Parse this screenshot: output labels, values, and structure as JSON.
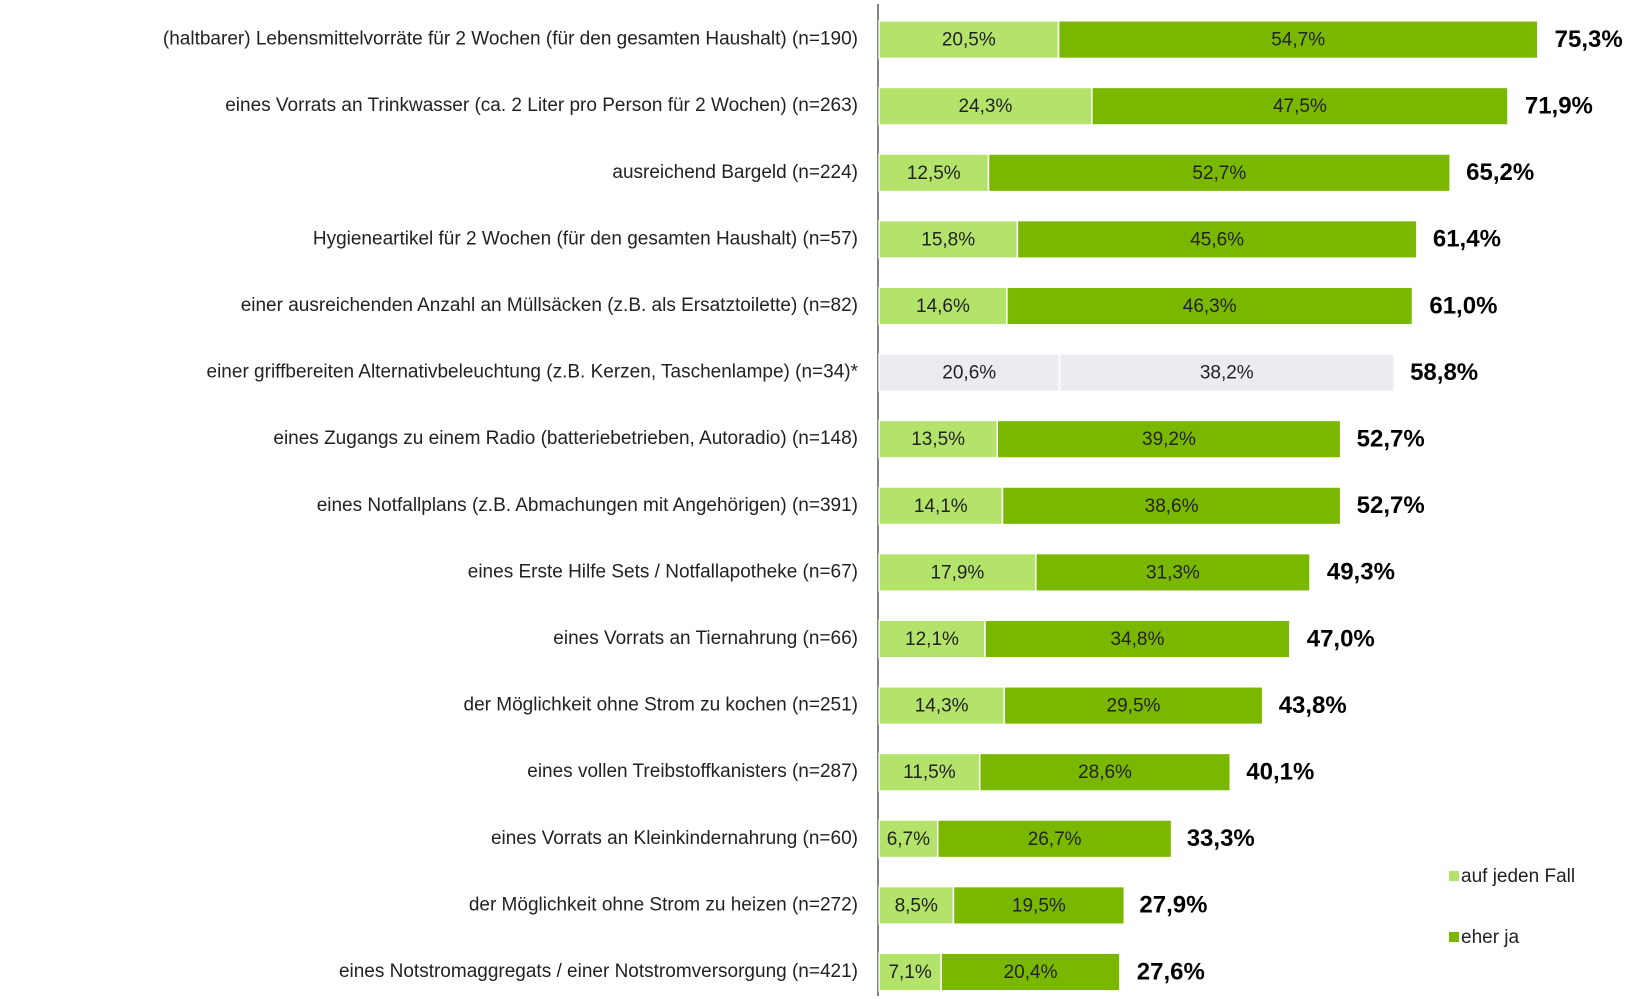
{
  "chart_data": {
    "type": "stacked-bar-horizontal",
    "categories": [
      "(haltbarer) Lebensmittelvorräte für 2 Wochen (für den gesamten Haushalt) (n=190)",
      "eines Vorrats an Trinkwasser (ca. 2 Liter pro Person für 2 Wochen) (n=263)",
      "ausreichend Bargeld (n=224)",
      "Hygieneartikel für 2 Wochen (für den gesamten Haushalt) (n=57)",
      "einer ausreichenden Anzahl an Müllsäcken (z.B. als Ersatztoilette) (n=82)",
      "einer griffbereiten Alternativbeleuchtung (z.B. Kerzen, Taschenlampe) (n=34)*",
      "eines Zugangs zu einem Radio (batteriebetrieben, Autoradio) (n=148)",
      "eines Notfallplans (z.B. Abmachungen mit Angehörigen) (n=391)",
      "eines Erste Hilfe Sets / Notfallapotheke (n=67)",
      "eines Vorrats an Tiernahrung (n=66)",
      "der Möglichkeit ohne Strom zu kochen (n=251)",
      "eines vollen Treibstoffkanisters (n=287)",
      "eines Vorrats an Kleinkindernahrung (n=60)",
      "der Möglichkeit ohne Strom zu heizen (n=272)",
      "eines Notstromaggregats / einer Notstromversorgung (n=421)"
    ],
    "series": [
      {
        "name": "auf jeden Fall",
        "color": "#b3e36b",
        "colors": [
          "#b3e36b",
          "#b3e36b",
          "#b3e36b",
          "#b3e36b",
          "#b3e36b",
          "#ebebf0",
          "#b3e36b",
          "#b3e36b",
          "#b3e36b",
          "#b3e36b",
          "#b3e36b",
          "#b3e36b",
          "#b3e36b",
          "#b3e36b",
          "#b3e36b"
        ],
        "values": [
          20.5,
          24.3,
          12.5,
          15.8,
          14.6,
          20.6,
          13.5,
          14.1,
          17.9,
          12.1,
          14.3,
          11.5,
          6.7,
          8.5,
          7.1
        ],
        "value_labels": [
          "20,5%",
          "24,3%",
          "12,5%",
          "15,8%",
          "14,6%",
          "20,6%",
          "13,5%",
          "14,1%",
          "17,9%",
          "12,1%",
          "14,3%",
          "11,5%",
          "6,7%",
          "8,5%",
          "7,1%"
        ]
      },
      {
        "name": "eher ja",
        "color": "#7ab800",
        "colors": [
          "#7ab800",
          "#7ab800",
          "#7ab800",
          "#7ab800",
          "#7ab800",
          "#ebebf0",
          "#7ab800",
          "#7ab800",
          "#7ab800",
          "#7ab800",
          "#7ab800",
          "#7ab800",
          "#7ab800",
          "#7ab800",
          "#7ab800"
        ],
        "values": [
          54.7,
          47.5,
          52.7,
          45.6,
          46.3,
          38.2,
          39.2,
          38.6,
          31.3,
          34.8,
          29.5,
          28.6,
          26.7,
          19.5,
          20.4
        ],
        "value_labels": [
          "54,7%",
          "47,5%",
          "52,7%",
          "45,6%",
          "46,3%",
          "38,2%",
          "39,2%",
          "38,6%",
          "31,3%",
          "34,8%",
          "29,5%",
          "28,6%",
          "26,7%",
          "19,5%",
          "20,4%"
        ]
      }
    ],
    "totals": [
      75.3,
      71.9,
      65.2,
      61.4,
      61.0,
      58.8,
      52.7,
      52.7,
      49.3,
      47.0,
      43.8,
      40.1,
      33.3,
      27.9,
      27.6
    ],
    "total_labels": [
      "75,3%",
      "71,9%",
      "65,2%",
      "61,4%",
      "61,0%",
      "58,8%",
      "52,7%",
      "52,7%",
      "49,3%",
      "47,0%",
      "43,8%",
      "40,1%",
      "33,3%",
      "27,9%",
      "27,6%"
    ],
    "legend": "lower-right"
  }
}
